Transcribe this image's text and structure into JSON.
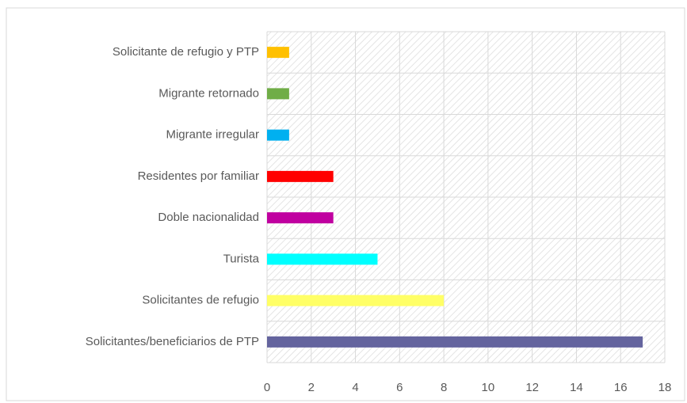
{
  "chart_data": {
    "type": "bar",
    "orientation": "horizontal",
    "categories": [
      "Solicitante de refugio y PTP",
      "Migrante retornado",
      "Migrante irregular",
      "Residentes por familiar",
      "Doble nacionalidad",
      "Turista",
      "Solicitantes de refugio",
      "Solicitantes/beneficiarios de PTP"
    ],
    "values": [
      1,
      1,
      1,
      3,
      3,
      5,
      8,
      17
    ],
    "colors": [
      "#ffc000",
      "#70ad47",
      "#00b0f0",
      "#ff0000",
      "#c000a0",
      "#00ffff",
      "#ffff66",
      "#64649e"
    ],
    "xlim": [
      0,
      18
    ],
    "xticks": [
      0,
      2,
      4,
      6,
      8,
      10,
      12,
      14,
      16,
      18
    ],
    "grid": true
  }
}
